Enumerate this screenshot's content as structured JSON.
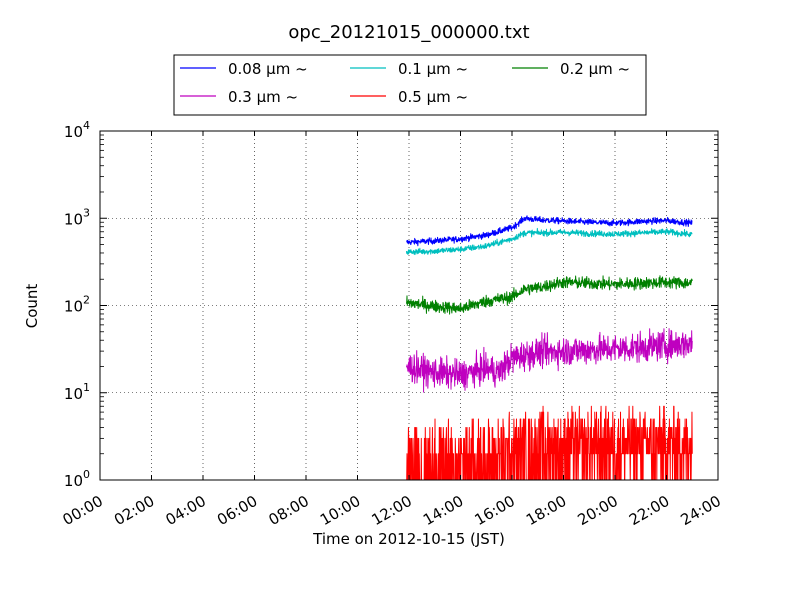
{
  "chart_data": {
    "type": "line",
    "title": "opc_20121015_000000.txt",
    "xlabel": "Time on 2012-10-15 (JST)",
    "ylabel": "Count",
    "x_range_hours": [
      0,
      24
    ],
    "y_scale": "log",
    "ylim": [
      1,
      10000
    ],
    "grid": true,
    "legend_placement": "top-center (outside axes)",
    "x_ticks": [
      "00:00",
      "02:00",
      "04:00",
      "06:00",
      "08:00",
      "10:00",
      "12:00",
      "14:00",
      "16:00",
      "18:00",
      "20:00",
      "22:00",
      "24:00"
    ],
    "y_ticks": [
      {
        "value": 1,
        "base": "10",
        "exp": "0"
      },
      {
        "value": 10,
        "base": "10",
        "exp": "1"
      },
      {
        "value": 100,
        "base": "10",
        "exp": "2"
      },
      {
        "value": 1000,
        "base": "10",
        "exp": "3"
      },
      {
        "value": 10000,
        "base": "10",
        "exp": "4"
      }
    ],
    "series": [
      {
        "name": "0.08 μm ~",
        "label_num": "0.08",
        "color": "#0000ff",
        "noise": 0.025,
        "points": [
          [
            11.9,
            530
          ],
          [
            13,
            550
          ],
          [
            14,
            580
          ],
          [
            15,
            640
          ],
          [
            16,
            780
          ],
          [
            16.5,
            1000
          ],
          [
            17,
            960
          ],
          [
            18,
            930
          ],
          [
            19,
            900
          ],
          [
            20,
            880
          ],
          [
            21,
            920
          ],
          [
            22,
            940
          ],
          [
            23.0,
            880
          ]
        ]
      },
      {
        "name": "0.1 μm ~",
        "label_num": "0.1",
        "color": "#00bfbf",
        "noise": 0.025,
        "points": [
          [
            11.9,
            410
          ],
          [
            13,
            420
          ],
          [
            14,
            440
          ],
          [
            15,
            480
          ],
          [
            16,
            580
          ],
          [
            16.5,
            680
          ],
          [
            17,
            680
          ],
          [
            18,
            690
          ],
          [
            19,
            670
          ],
          [
            20,
            660
          ],
          [
            21,
            680
          ],
          [
            22,
            700
          ],
          [
            23.0,
            650
          ]
        ]
      },
      {
        "name": "0.2 μm ~",
        "label_num": "0.2",
        "color": "#008000",
        "noise": 0.05,
        "points": [
          [
            11.9,
            108
          ],
          [
            13,
            98
          ],
          [
            14,
            92
          ],
          [
            15,
            112
          ],
          [
            16,
            125
          ],
          [
            16.5,
            155
          ],
          [
            17,
            160
          ],
          [
            18,
            185
          ],
          [
            19,
            180
          ],
          [
            20,
            175
          ],
          [
            21,
            180
          ],
          [
            22,
            185
          ],
          [
            23.0,
            180
          ]
        ]
      },
      {
        "name": "0.3 μm ~",
        "label_num": "0.3",
        "color": "#bf00bf",
        "noise": 0.12,
        "points": [
          [
            11.9,
            20
          ],
          [
            13,
            17
          ],
          [
            14,
            16
          ],
          [
            15,
            19
          ],
          [
            15.5,
            17
          ],
          [
            16,
            25
          ],
          [
            17,
            29
          ],
          [
            18,
            30
          ],
          [
            19,
            31
          ],
          [
            20,
            32
          ],
          [
            21,
            33
          ],
          [
            22,
            35
          ],
          [
            23.0,
            37
          ]
        ]
      },
      {
        "name": "0.5 μm ~",
        "label_num": "0.5",
        "color": "#ff0000",
        "discrete": true,
        "levels": [
          1,
          2,
          3,
          4,
          5,
          6,
          7
        ],
        "points": [
          [
            11.9,
            1.6
          ],
          [
            13,
            1.6
          ],
          [
            14,
            1.7
          ],
          [
            15,
            1.8
          ],
          [
            16,
            2.3
          ],
          [
            17,
            2.6
          ],
          [
            18,
            2.6
          ],
          [
            19,
            2.7
          ],
          [
            20,
            2.7
          ],
          [
            21,
            2.7
          ],
          [
            22,
            2.8
          ],
          [
            23.0,
            2.8
          ]
        ]
      }
    ]
  }
}
